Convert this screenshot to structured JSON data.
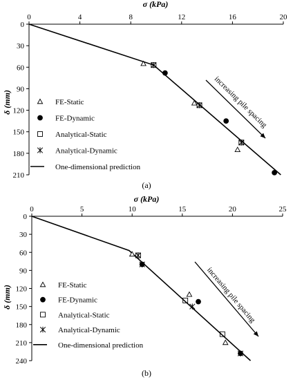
{
  "chart_data": [
    {
      "panel_label": "(a)",
      "type": "scatter",
      "xlabel": "σ (kPa)",
      "ylabel": "δ (mm)",
      "xlim": [
        0,
        20
      ],
      "ylim": [
        0,
        210
      ],
      "x_axis_position": "top",
      "y_axis_inverted": true,
      "xticks": [
        "0",
        "4",
        "8",
        "12",
        "16",
        "20"
      ],
      "yticks": [
        "0",
        "30",
        "60",
        "90",
        "120",
        "150",
        "180",
        "210"
      ],
      "grid": false,
      "legend_position": "bottom-left",
      "annotation": "increasing pile spacing",
      "series": [
        {
          "name": "FE-Static",
          "marker": "triangle",
          "points": [
            [
              9.0,
              55
            ],
            [
              13.0,
              110
            ],
            [
              16.4,
              175
            ]
          ]
        },
        {
          "name": "FE-Dynamic",
          "marker": "filled-circle",
          "points": [
            [
              10.7,
              68
            ],
            [
              15.5,
              135
            ],
            [
              19.3,
              207
            ]
          ]
        },
        {
          "name": "Analytical-Static",
          "marker": "open-square",
          "points": [
            [
              9.8,
              57
            ],
            [
              13.4,
              113
            ],
            [
              16.7,
              165
            ]
          ]
        },
        {
          "name": "Analytical-Dynamic",
          "marker": "star",
          "points": [
            [
              9.8,
              57
            ],
            [
              13.4,
              113
            ],
            [
              16.7,
              165
            ]
          ]
        },
        {
          "name": "One-dimensional prediction",
          "marker": "line",
          "points": [
            [
              0,
              0
            ],
            [
              9.8,
              57
            ],
            [
              19.8,
              210
            ]
          ]
        }
      ]
    },
    {
      "panel_label": "(b)",
      "type": "scatter",
      "xlabel": "σ (kPa)",
      "ylabel": "δ (mm)",
      "xlim": [
        0,
        25
      ],
      "ylim": [
        0,
        240
      ],
      "x_axis_position": "top",
      "y_axis_inverted": true,
      "xticks": [
        "0",
        "5",
        "10",
        "15",
        "20",
        "25"
      ],
      "yticks": [
        "0",
        "30",
        "60",
        "90",
        "120",
        "150",
        "180",
        "210",
        "240"
      ],
      "grid": false,
      "legend_position": "bottom-left",
      "annotation": "increasing pile spacing",
      "series": [
        {
          "name": "FE-Static",
          "marker": "triangle",
          "points": [
            [
              10.0,
              63
            ],
            [
              15.7,
              130
            ],
            [
              19.3,
              210
            ]
          ]
        },
        {
          "name": "FE-Dynamic",
          "marker": "filled-circle",
          "points": [
            [
              11.0,
              80
            ],
            [
              16.6,
              142
            ],
            [
              20.8,
              228
            ]
          ]
        },
        {
          "name": "Analytical-Static",
          "marker": "open-square",
          "points": [
            [
              10.6,
              65
            ],
            [
              15.3,
              140
            ],
            [
              19.0,
              196
            ]
          ]
        },
        {
          "name": "Analytical-Dynamic",
          "marker": "star",
          "points": [
            [
              10.6,
              65
            ],
            [
              11.0,
              80
            ],
            [
              16.0,
              150
            ],
            [
              20.8,
              228
            ]
          ]
        },
        {
          "name": "One-dimensional prediction",
          "marker": "line",
          "points": [
            [
              0,
              0
            ],
            [
              9.7,
              57
            ],
            [
              21.8,
              240
            ]
          ]
        }
      ]
    }
  ]
}
